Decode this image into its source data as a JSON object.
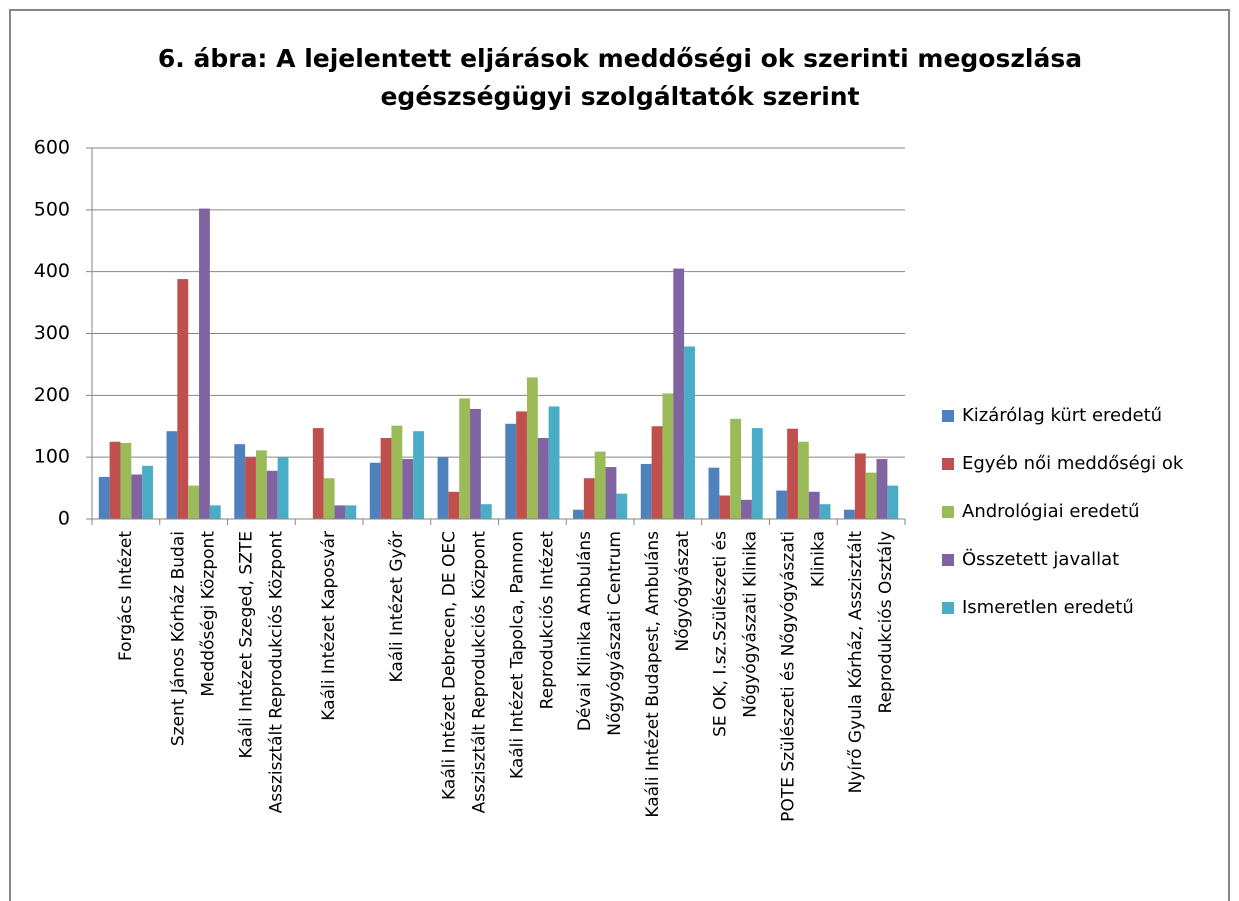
{
  "chart_data": {
    "type": "bar",
    "title": [
      "6. ábra: A lejelentett eljárások meddőségi ok szerinti megoszlása",
      "egészségügyi szolgáltatók szerint"
    ],
    "categories": [
      [
        "Forgács Intézet"
      ],
      [
        "Szent János Kórház Budai",
        "Meddőségi Központ"
      ],
      [
        "Kaáli Intézet Szeged, SZTE",
        "Asszisztált Reprodukciós Központ"
      ],
      [
        "Kaáli Intézet Kaposvár"
      ],
      [
        "Kaáli Intézet  Győr"
      ],
      [
        "Kaáli Intézet Debrecen, DE OEC",
        "Asszisztált Reprodukciós Központ"
      ],
      [
        "Kaáli Intézet Tapolca, Pannon",
        "Reprodukciós Intézet"
      ],
      [
        "Dévai Klinika Ambuláns",
        "Nőgyógyászati Centrum"
      ],
      [
        "Kaáli Intézet Budapest, Ambuláns",
        "Nőgyógyászat"
      ],
      [
        "SE OK, I.sz.Szülészeti és",
        "Nőgyógyászati Klinika"
      ],
      [
        "POTE Szülészeti és Nőgyógyászati",
        "Klinika"
      ],
      [
        "Nyírő Gyula Kórház, Asszisztált",
        "Reprodukciós Osztály"
      ]
    ],
    "series": [
      {
        "name": "Kizárólag kürt eredetű",
        "color": "#4f81bd",
        "values": [
          68,
          142,
          121,
          0,
          91,
          100,
          154,
          15,
          89,
          83,
          46,
          15
        ]
      },
      {
        "name": "Egyéb női meddőségi ok",
        "color": "#c0504d",
        "values": [
          125,
          388,
          100,
          147,
          131,
          44,
          174,
          66,
          150,
          38,
          146,
          106
        ]
      },
      {
        "name": "Andrológiai eredetű",
        "color": "#9bbb59",
        "values": [
          123,
          54,
          111,
          66,
          151,
          195,
          229,
          109,
          203,
          162,
          125,
          75
        ]
      },
      {
        "name": "Összetett javallat",
        "color": "#8064a2",
        "values": [
          72,
          502,
          78,
          22,
          97,
          178,
          131,
          84,
          405,
          31,
          44,
          97
        ]
      },
      {
        "name": "Ismeretlen eredetű",
        "color": "#4bacc6",
        "values": [
          86,
          22,
          100,
          22,
          142,
          24,
          182,
          41,
          279,
          147,
          24,
          54
        ]
      }
    ],
    "ylim": [
      0,
      600
    ],
    "yticks": [
      0,
      100,
      200,
      300,
      400,
      500,
      600
    ],
    "grid": true,
    "legend": "right"
  }
}
